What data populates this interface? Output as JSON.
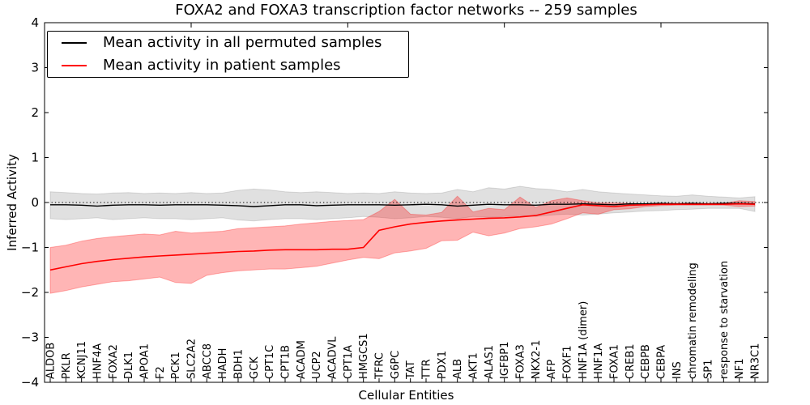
{
  "chart_data": {
    "type": "line",
    "title": "FOXA2 and FOXA3 transcription factor networks -- 259 samples",
    "xlabel": "Cellular Entities",
    "ylabel": "Inferred Activity",
    "ylim": [
      -4,
      4
    ],
    "yticks": [
      4,
      3,
      2,
      1,
      0,
      -1,
      -2,
      -3,
      -4
    ],
    "grid": false,
    "legend_position": "upper left",
    "zero_reference_line": 0,
    "top_axis_tick_indices": [
      9,
      19,
      29,
      39
    ],
    "categories": [
      "ALDOB",
      "PKLR",
      "KCNJ11",
      "HNF4A",
      "FOXA2",
      "DLK1",
      "APOA1",
      "F2",
      "PCK1",
      "SLC2A2",
      "ABCC8",
      "HADH",
      "BDH1",
      "GCK",
      "CPT1C",
      "CPT1B",
      "ACADM",
      "UCP2",
      "ACADVL",
      "CPT1A",
      "HMGCS1",
      "TFRC",
      "G6PC",
      "TAT",
      "TTR",
      "PDX1",
      "ALB",
      "AKT1",
      "ALAS1",
      "IGFBP1",
      "FOXA3",
      "NKX2-1",
      "AFP",
      "FOXF1",
      "HNF1A (dimer)",
      "HNF1A",
      "FOXA1",
      "CREB1",
      "CEBPB",
      "CEBPA",
      "INS",
      "chromatin remodeling",
      "SP1",
      "response to starvation",
      "NF1",
      "NR3C1"
    ],
    "series": [
      {
        "key": "permuted",
        "name": "Mean activity in all permuted samples",
        "color": "#000000",
        "band_color": "rgba(0,0,0,0.12)",
        "values": [
          -0.05,
          -0.05,
          -0.06,
          -0.08,
          -0.06,
          -0.05,
          -0.05,
          -0.06,
          -0.05,
          -0.05,
          -0.05,
          -0.06,
          -0.07,
          -0.09,
          -0.07,
          -0.05,
          -0.05,
          -0.07,
          -0.06,
          -0.05,
          -0.05,
          -0.05,
          -0.06,
          -0.05,
          -0.04,
          -0.05,
          -0.08,
          -0.06,
          -0.04,
          -0.05,
          -0.05,
          -0.06,
          -0.04,
          -0.04,
          -0.03,
          -0.04,
          -0.05,
          -0.03,
          -0.03,
          -0.02,
          -0.03,
          -0.02,
          -0.03,
          -0.02,
          -0.02,
          -0.03
        ],
        "band_upper": [
          0.24,
          0.22,
          0.2,
          0.19,
          0.21,
          0.22,
          0.2,
          0.21,
          0.2,
          0.22,
          0.2,
          0.21,
          0.27,
          0.3,
          0.28,
          0.24,
          0.22,
          0.24,
          0.22,
          0.2,
          0.21,
          0.2,
          0.24,
          0.21,
          0.2,
          0.21,
          0.29,
          0.24,
          0.33,
          0.3,
          0.36,
          0.31,
          0.29,
          0.24,
          0.29,
          0.24,
          0.21,
          0.19,
          0.17,
          0.15,
          0.14,
          0.17,
          0.14,
          0.12,
          0.1,
          0.13
        ],
        "band_lower": [
          -0.36,
          -0.38,
          -0.36,
          -0.34,
          -0.38,
          -0.36,
          -0.34,
          -0.36,
          -0.36,
          -0.38,
          -0.36,
          -0.34,
          -0.39,
          -0.41,
          -0.38,
          -0.36,
          -0.36,
          -0.38,
          -0.36,
          -0.34,
          -0.31,
          -0.33,
          -0.36,
          -0.34,
          -0.31,
          -0.33,
          -0.36,
          -0.31,
          -0.33,
          -0.31,
          -0.29,
          -0.31,
          -0.28,
          -0.26,
          -0.28,
          -0.26,
          -0.23,
          -0.21,
          -0.19,
          -0.18,
          -0.16,
          -0.15,
          -0.13,
          -0.13,
          -0.13,
          -0.2
        ]
      },
      {
        "key": "patient",
        "name": "Mean activity in patient samples",
        "color": "#ff0000",
        "band_color": "rgba(255,0,0,0.29)",
        "values": [
          -1.5,
          -1.43,
          -1.36,
          -1.31,
          -1.27,
          -1.24,
          -1.21,
          -1.19,
          -1.17,
          -1.15,
          -1.13,
          -1.11,
          -1.09,
          -1.08,
          -1.06,
          -1.05,
          -1.05,
          -1.05,
          -1.04,
          -1.04,
          -1.0,
          -0.62,
          -0.54,
          -0.48,
          -0.44,
          -0.41,
          -0.39,
          -0.37,
          -0.35,
          -0.34,
          -0.32,
          -0.29,
          -0.21,
          -0.13,
          -0.05,
          -0.07,
          -0.09,
          -0.06,
          -0.05,
          -0.04,
          -0.04,
          -0.04,
          -0.04,
          -0.04,
          -0.03,
          -0.04
        ],
        "band_upper": [
          -1.0,
          -0.95,
          -0.86,
          -0.8,
          -0.76,
          -0.73,
          -0.7,
          -0.72,
          -0.64,
          -0.68,
          -0.66,
          -0.64,
          -0.58,
          -0.56,
          -0.54,
          -0.52,
          -0.48,
          -0.45,
          -0.42,
          -0.4,
          -0.38,
          -0.2,
          0.07,
          -0.26,
          -0.28,
          -0.22,
          0.14,
          -0.21,
          -0.13,
          -0.16,
          0.12,
          -0.11,
          0.04,
          0.1,
          0.04,
          -0.01,
          -0.01,
          -0.02,
          -0.03,
          -0.02,
          -0.02,
          -0.02,
          -0.02,
          -0.02,
          0.04,
          0.02
        ],
        "band_lower": [
          -2.02,
          -1.96,
          -1.88,
          -1.82,
          -1.76,
          -1.74,
          -1.7,
          -1.66,
          -1.78,
          -1.8,
          -1.62,
          -1.56,
          -1.52,
          -1.5,
          -1.48,
          -1.48,
          -1.45,
          -1.42,
          -1.35,
          -1.28,
          -1.22,
          -1.25,
          -1.12,
          -1.08,
          -1.02,
          -0.85,
          -0.84,
          -0.66,
          -0.74,
          -0.68,
          -0.58,
          -0.54,
          -0.48,
          -0.36,
          -0.23,
          -0.26,
          -0.16,
          -0.14,
          -0.09,
          -0.07,
          -0.06,
          -0.06,
          -0.06,
          -0.06,
          -0.09,
          -0.08
        ]
      }
    ]
  }
}
